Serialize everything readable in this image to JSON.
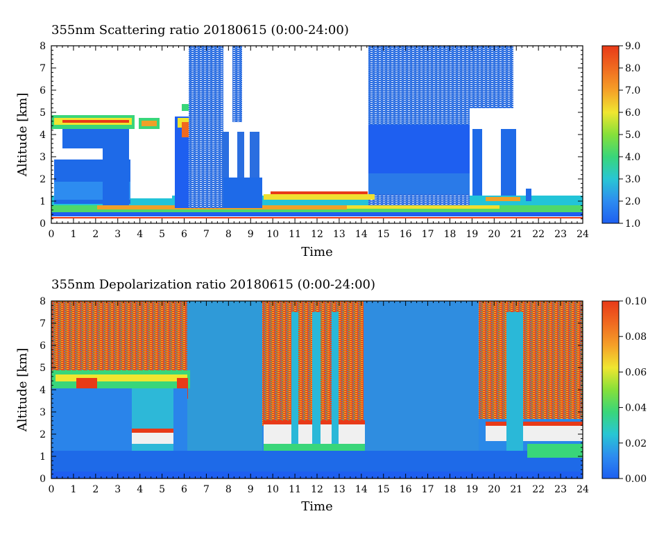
{
  "chart_data": [
    {
      "type": "heatmap",
      "title": "355nm Scattering ratio  20180615 (0:00-24:00)",
      "xlabel": "Time",
      "ylabel": "Altitude [km]",
      "xlim": [
        0,
        24
      ],
      "ylim": [
        0,
        8
      ],
      "x_ticks": [
        "0",
        "1",
        "2",
        "3",
        "4",
        "5",
        "6",
        "7",
        "8",
        "9",
        "10",
        "11",
        "12",
        "13",
        "14",
        "15",
        "16",
        "17",
        "18",
        "19",
        "20",
        "21",
        "22",
        "23",
        "24"
      ],
      "y_ticks": [
        "0",
        "1",
        "2",
        "3",
        "4",
        "5",
        "6",
        "7",
        "8"
      ],
      "colorbar": {
        "range": [
          1.0,
          9.0
        ],
        "ticks": [
          "1.0",
          "2.0",
          "3.0",
          "4.0",
          "5.0",
          "6.0",
          "7.0",
          "8.0",
          "9.0"
        ],
        "colors": [
          "#1e5ff0",
          "#2d8cf0",
          "#29c6d4",
          "#39d67a",
          "#86e03a",
          "#f0e630",
          "#f5a028",
          "#f06a20",
          "#e83a18"
        ]
      }
    },
    {
      "type": "heatmap",
      "title": "355nm Depolarization ratio  20180615 (0:00-24:00)",
      "xlabel": "Time",
      "ylabel": "Altitude [km]",
      "xlim": [
        0,
        24
      ],
      "ylim": [
        0,
        8
      ],
      "x_ticks": [
        "0",
        "1",
        "2",
        "3",
        "4",
        "5",
        "6",
        "7",
        "8",
        "9",
        "10",
        "11",
        "12",
        "13",
        "14",
        "15",
        "16",
        "17",
        "18",
        "19",
        "20",
        "21",
        "22",
        "23",
        "24"
      ],
      "y_ticks": [
        "0",
        "1",
        "2",
        "3",
        "4",
        "5",
        "6",
        "7",
        "8"
      ],
      "colorbar": {
        "range": [
          0.0,
          0.1
        ],
        "ticks": [
          "0.00",
          "0.02",
          "0.04",
          "0.06",
          "0.08",
          "0.10"
        ],
        "colors": [
          "#1e5ff0",
          "#2d8cf0",
          "#29c6d4",
          "#39d67a",
          "#86e03a",
          "#f0e630",
          "#f5a028",
          "#f06a20",
          "#e83a18"
        ]
      }
    }
  ]
}
